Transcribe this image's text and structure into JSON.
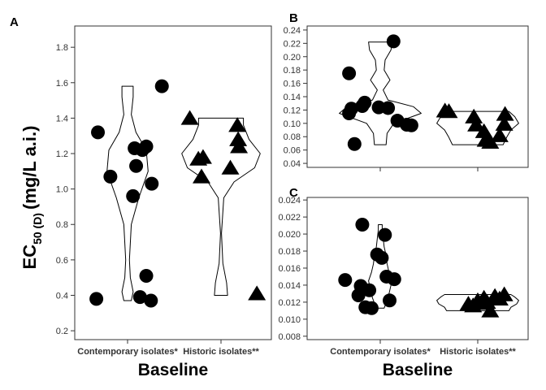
{
  "y_axis_label": {
    "prefix": "EC",
    "subscript": "50 (D)",
    "suffix": "(mg/L a.i.)"
  },
  "chart_data": [
    {
      "panel": "A",
      "type": "scatter",
      "overlay": "violin",
      "categories": [
        "Contemporary isolates*",
        "Historic isolates**"
      ],
      "xlabel": "Baseline",
      "ylim": [
        0.15,
        1.92
      ],
      "yticks": [
        "0.2",
        "0.4",
        "0.6",
        "0.8",
        "1.0",
        "1.2",
        "1.4",
        "1.6",
        "1.8"
      ],
      "series": [
        {
          "marker": "circle",
          "points": [
            {
              "cat": 0,
              "jitter": -0.4,
              "y": 0.38
            },
            {
              "cat": 0,
              "jitter": -0.38,
              "y": 1.32
            },
            {
              "cat": 0,
              "jitter": -0.22,
              "y": 1.07
            },
            {
              "cat": 0,
              "jitter": 0.07,
              "y": 0.96
            },
            {
              "cat": 0,
              "jitter": 0.09,
              "y": 1.23
            },
            {
              "cat": 0,
              "jitter": 0.11,
              "y": 1.13
            },
            {
              "cat": 0,
              "jitter": 0.16,
              "y": 0.39
            },
            {
              "cat": 0,
              "jitter": 0.19,
              "y": 1.22
            },
            {
              "cat": 0,
              "jitter": 0.24,
              "y": 0.51
            },
            {
              "cat": 0,
              "jitter": 0.24,
              "y": 1.24
            },
            {
              "cat": 0,
              "jitter": 0.3,
              "y": 0.37
            },
            {
              "cat": 0,
              "jitter": 0.31,
              "y": 1.03
            },
            {
              "cat": 0,
              "jitter": 0.44,
              "y": 1.58
            }
          ]
        },
        {
          "marker": "triangle",
          "points": [
            {
              "cat": 1,
              "jitter": -0.4,
              "y": 1.4
            },
            {
              "cat": 1,
              "jitter": -0.29,
              "y": 1.17
            },
            {
              "cat": 1,
              "jitter": -0.23,
              "y": 1.18
            },
            {
              "cat": 1,
              "jitter": -0.25,
              "y": 1.07
            },
            {
              "cat": 1,
              "jitter": 0.12,
              "y": 1.12
            },
            {
              "cat": 1,
              "jitter": 0.21,
              "y": 1.36
            },
            {
              "cat": 1,
              "jitter": 0.22,
              "y": 1.28
            },
            {
              "cat": 1,
              "jitter": 0.23,
              "y": 1.24
            },
            {
              "cat": 1,
              "jitter": 0.46,
              "y": 0.41
            }
          ]
        }
      ],
      "violins": [
        {
          "cat": 0,
          "profile": [
            [
              0.37,
              0.04
            ],
            [
              0.42,
              0.06
            ],
            [
              0.5,
              0.03
            ],
            [
              0.6,
              0.02
            ],
            [
              0.8,
              0.04
            ],
            [
              0.95,
              0.12
            ],
            [
              1.1,
              0.22
            ],
            [
              1.22,
              0.2
            ],
            [
              1.32,
              0.09
            ],
            [
              1.42,
              0.04
            ],
            [
              1.52,
              0.06
            ],
            [
              1.58,
              0.06
            ]
          ]
        },
        {
          "cat": 1,
          "profile": [
            [
              0.4,
              0.07
            ],
            [
              0.47,
              0.06
            ],
            [
              0.58,
              0.02
            ],
            [
              0.75,
              0.005
            ],
            [
              0.95,
              0.03
            ],
            [
              1.04,
              0.14
            ],
            [
              1.12,
              0.36
            ],
            [
              1.2,
              0.42
            ],
            [
              1.28,
              0.3
            ],
            [
              1.36,
              0.24
            ],
            [
              1.4,
              0.24
            ]
          ]
        }
      ]
    },
    {
      "panel": "B",
      "type": "scatter",
      "overlay": "violin",
      "categories": [
        "",
        ""
      ],
      "xlabel": "",
      "ylim": [
        0.034,
        0.246
      ],
      "yticks": [
        "0.04",
        "0.06",
        "0.08",
        "0.10",
        "0.12",
        "0.14",
        "0.16",
        "0.18",
        "0.20",
        "0.22",
        "0.24"
      ],
      "series": [
        {
          "marker": "circle",
          "points": [
            {
              "cat": 0,
              "jitter": -0.4,
              "y": 0.175
            },
            {
              "cat": 0,
              "jitter": -0.4,
              "y": 0.115
            },
            {
              "cat": 0,
              "jitter": -0.37,
              "y": 0.122
            },
            {
              "cat": 0,
              "jitter": -0.33,
              "y": 0.069
            },
            {
              "cat": 0,
              "jitter": -0.23,
              "y": 0.126
            },
            {
              "cat": 0,
              "jitter": -0.2,
              "y": 0.131
            },
            {
              "cat": 0,
              "jitter": -0.02,
              "y": 0.124
            },
            {
              "cat": 0,
              "jitter": 0.1,
              "y": 0.123
            },
            {
              "cat": 0,
              "jitter": 0.17,
              "y": 0.223
            },
            {
              "cat": 0,
              "jitter": 0.22,
              "y": 0.104
            },
            {
              "cat": 0,
              "jitter": 0.34,
              "y": 0.098
            },
            {
              "cat": 0,
              "jitter": 0.4,
              "y": 0.097
            }
          ]
        },
        {
          "marker": "triangle",
          "points": [
            {
              "cat": 1,
              "jitter": -0.42,
              "y": 0.119
            },
            {
              "cat": 1,
              "jitter": -0.37,
              "y": 0.118
            },
            {
              "cat": 1,
              "jitter": -0.05,
              "y": 0.11
            },
            {
              "cat": 1,
              "jitter": -0.02,
              "y": 0.098
            },
            {
              "cat": 1,
              "jitter": 0.08,
              "y": 0.088
            },
            {
              "cat": 1,
              "jitter": 0.1,
              "y": 0.075
            },
            {
              "cat": 1,
              "jitter": 0.16,
              "y": 0.072
            },
            {
              "cat": 1,
              "jitter": 0.28,
              "y": 0.082
            },
            {
              "cat": 1,
              "jitter": 0.34,
              "y": 0.099
            },
            {
              "cat": 1,
              "jitter": 0.35,
              "y": 0.114
            }
          ]
        }
      ],
      "violins": [
        {
          "cat": 0,
          "profile": [
            [
              0.068,
              0.06
            ],
            [
              0.085,
              0.07
            ],
            [
              0.1,
              0.14
            ],
            [
              0.115,
              0.42
            ],
            [
              0.125,
              0.34
            ],
            [
              0.135,
              0.08
            ],
            [
              0.15,
              0.03
            ],
            [
              0.165,
              0.1
            ],
            [
              0.18,
              0.04
            ],
            [
              0.195,
              0.05
            ],
            [
              0.21,
              0.11
            ],
            [
              0.222,
              0.12
            ]
          ]
        },
        {
          "cat": 1,
          "profile": [
            [
              0.068,
              0.26
            ],
            [
              0.08,
              0.3
            ],
            [
              0.09,
              0.34
            ],
            [
              0.1,
              0.42
            ],
            [
              0.11,
              0.38
            ],
            [
              0.118,
              0.32
            ]
          ]
        }
      ]
    },
    {
      "panel": "C",
      "type": "scatter",
      "overlay": "violin",
      "categories": [
        "Contemporary isolates*",
        "Historic isolates**"
      ],
      "xlabel": "Baseline",
      "ylim": [
        0.0076,
        0.0243
      ],
      "yticks": [
        "0.008",
        "0.010",
        "0.012",
        "0.014",
        "0.016",
        "0.018",
        "0.020",
        "0.022",
        "0.024"
      ],
      "series": [
        {
          "marker": "circle",
          "points": [
            {
              "cat": 0,
              "jitter": -0.45,
              "y": 0.0146
            },
            {
              "cat": 0,
              "jitter": -0.28,
              "y": 0.0128
            },
            {
              "cat": 0,
              "jitter": -0.25,
              "y": 0.0139
            },
            {
              "cat": 0,
              "jitter": -0.23,
              "y": 0.0211
            },
            {
              "cat": 0,
              "jitter": -0.19,
              "y": 0.0114
            },
            {
              "cat": 0,
              "jitter": -0.14,
              "y": 0.0134
            },
            {
              "cat": 0,
              "jitter": -0.11,
              "y": 0.0113
            },
            {
              "cat": 0,
              "jitter": -0.04,
              "y": 0.0176
            },
            {
              "cat": 0,
              "jitter": 0.02,
              "y": 0.0172
            },
            {
              "cat": 0,
              "jitter": 0.06,
              "y": 0.0199
            },
            {
              "cat": 0,
              "jitter": 0.08,
              "y": 0.015
            },
            {
              "cat": 0,
              "jitter": 0.12,
              "y": 0.0122
            },
            {
              "cat": 0,
              "jitter": 0.18,
              "y": 0.0147
            }
          ]
        },
        {
          "marker": "triangle",
          "points": [
            {
              "cat": 1,
              "jitter": -0.12,
              "y": 0.0118
            },
            {
              "cat": 1,
              "jitter": -0.06,
              "y": 0.0116
            },
            {
              "cat": 1,
              "jitter": 0.0,
              "y": 0.0122
            },
            {
              "cat": 1,
              "jitter": 0.04,
              "y": 0.0119
            },
            {
              "cat": 1,
              "jitter": 0.08,
              "y": 0.0125
            },
            {
              "cat": 1,
              "jitter": 0.12,
              "y": 0.012
            },
            {
              "cat": 1,
              "jitter": 0.16,
              "y": 0.011
            },
            {
              "cat": 1,
              "jitter": 0.22,
              "y": 0.0127
            },
            {
              "cat": 1,
              "jitter": 0.28,
              "y": 0.0124
            },
            {
              "cat": 1,
              "jitter": 0.34,
              "y": 0.0129
            }
          ]
        }
      ],
      "violins": [
        {
          "cat": 0,
          "profile": [
            [
              0.0113,
              0.04
            ],
            [
              0.0125,
              0.08
            ],
            [
              0.0135,
              0.1
            ],
            [
              0.0145,
              0.12
            ],
            [
              0.0155,
              0.09
            ],
            [
              0.0165,
              0.07
            ],
            [
              0.0175,
              0.06
            ],
            [
              0.0185,
              0.04
            ],
            [
              0.0195,
              0.03
            ],
            [
              0.0205,
              0.02
            ],
            [
              0.0211,
              0.02
            ]
          ]
        },
        {
          "cat": 1,
          "profile": [
            [
              0.011,
              0.32
            ],
            [
              0.0114,
              0.34
            ],
            [
              0.0118,
              0.4
            ],
            [
              0.0122,
              0.42
            ],
            [
              0.0126,
              0.38
            ],
            [
              0.0129,
              0.34
            ]
          ]
        }
      ]
    }
  ]
}
